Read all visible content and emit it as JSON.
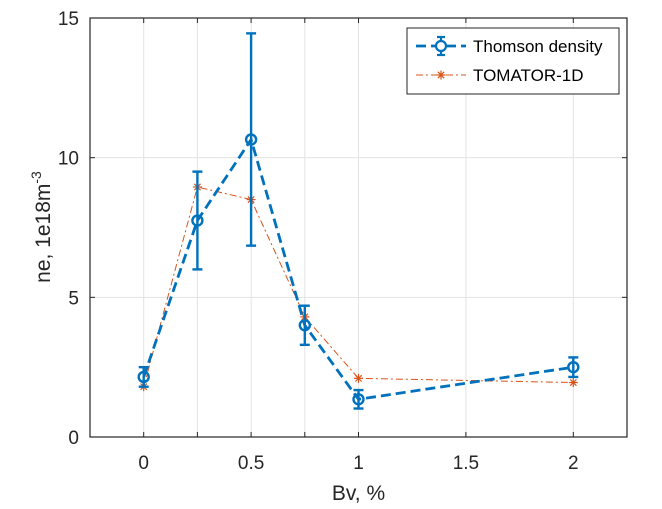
{
  "chart_data": {
    "type": "line",
    "title": "",
    "xlabel": "Bv, %",
    "ylabel": "ne, 1e18m",
    "ylabel_superscript": "-3",
    "xlim": [
      -0.25,
      2.25
    ],
    "ylim": [
      0,
      15
    ],
    "x_tick_values": [
      0,
      0.25,
      0.5,
      0.75,
      1,
      1.5,
      2
    ],
    "x_tick_labels": [
      "0",
      "",
      "0.5",
      "",
      "1",
      "1.5",
      "2"
    ],
    "x_tick_positions": [
      0,
      0.25,
      0.5,
      0.75,
      1,
      1.5,
      2
    ],
    "y_tick_values": [
      0,
      5,
      10,
      15
    ],
    "y_tick_labels": [
      "0",
      "5",
      "10",
      "15"
    ],
    "grid": true,
    "legend_position": "top-right",
    "series": [
      {
        "name": "Thomson density",
        "color": "#0072BD",
        "style": "dashed-circle-errorbar",
        "x": [
          0,
          0.25,
          0.5,
          0.75,
          1,
          2
        ],
        "y": [
          2.15,
          7.75,
          10.65,
          4.0,
          1.35,
          2.5
        ],
        "error": [
          0.35,
          1.75,
          3.8,
          0.7,
          0.33,
          0.35
        ]
      },
      {
        "name": "TOMATOR-1D",
        "color": "#D95319",
        "style": "dashdot-star",
        "x": [
          0,
          0.25,
          0.5,
          0.75,
          1,
          2
        ],
        "y": [
          1.8,
          8.95,
          8.5,
          4.3,
          2.1,
          1.95
        ]
      }
    ]
  }
}
